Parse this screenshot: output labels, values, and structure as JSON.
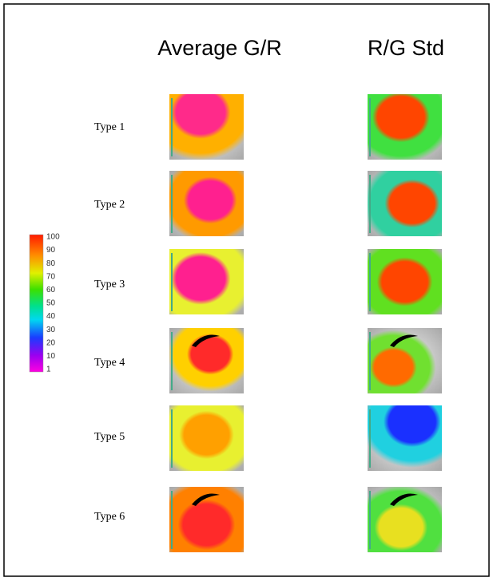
{
  "header": {
    "columns": [
      "Average G/R",
      "R/G Std"
    ]
  },
  "rows": [
    "Type 1",
    "Type 2",
    "Type 3",
    "Type 4",
    "Type 5",
    "Type 6"
  ],
  "colorbar": {
    "labels": [
      100,
      90,
      80,
      70,
      60,
      50,
      40,
      30,
      20,
      10,
      1
    ]
  }
}
